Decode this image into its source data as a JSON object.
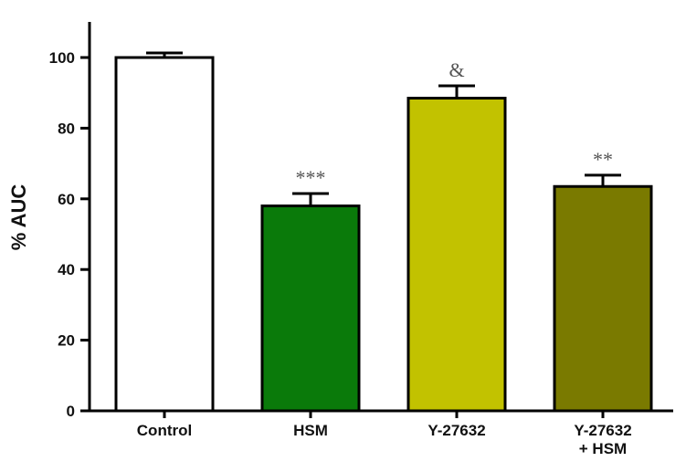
{
  "chart_data": {
    "type": "bar",
    "title": "",
    "xlabel": "",
    "ylabel": "% AUC",
    "ylim": [
      0,
      110
    ],
    "yticks": [
      0,
      20,
      40,
      60,
      80,
      100
    ],
    "grid": false,
    "categories": [
      {
        "lines": [
          "Control"
        ]
      },
      {
        "lines": [
          "HSM"
        ]
      },
      {
        "lines": [
          "Y-27632"
        ]
      },
      {
        "lines": [
          "Y-27632",
          "+ HSM"
        ]
      }
    ],
    "values": [
      100,
      58,
      88.5,
      63.5
    ],
    "errors": [
      1.3,
      3.5,
      3.5,
      3.2
    ],
    "significance": [
      "",
      "***",
      "&",
      "**"
    ],
    "colors": [
      "#ffffff",
      "#0a7a0a",
      "#c2c200",
      "#7a7a00"
    ],
    "edge_color": "#000000"
  }
}
